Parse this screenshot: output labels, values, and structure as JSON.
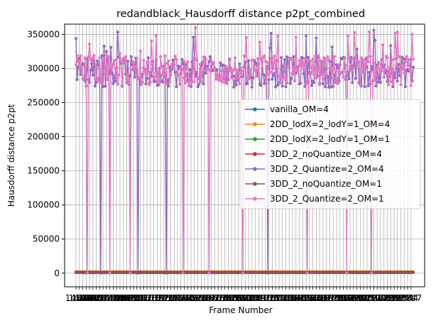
{
  "chart_data": {
    "type": "line",
    "title": "redandblack_Hausdorff distance p2pt_combined",
    "xlabel": "Frame Number",
    "ylabel": "Hausdorff distance p2pt",
    "ylim": [
      -20000,
      365000
    ],
    "yticks": [
      0,
      50000,
      100000,
      150000,
      200000,
      250000,
      300000,
      350000
    ],
    "ytick_labels": [
      "0",
      "50000",
      "100000",
      "150000",
      "200000",
      "250000",
      "300000",
      "350000"
    ],
    "xticks_visible": [
      "1450",
      "1749"
    ],
    "x_range": [
      1450,
      1749
    ],
    "grid": true,
    "legend_position": "right",
    "series": [
      {
        "name": "vanilla_OM=4",
        "color": "#1f77b4",
        "pattern": "near_zero",
        "base": 1500
      },
      {
        "name": "2DD_lodX=2_lodY=1_OM=4",
        "color": "#ff7f0e",
        "pattern": "near_zero",
        "base": 1700
      },
      {
        "name": "2DD_lodX=2_lodY=1_OM=1",
        "color": "#2ca02c",
        "pattern": "near_zero",
        "base": 1300
      },
      {
        "name": "3DD_2_noQuantize_OM=4",
        "color": "#d62728",
        "pattern": "near_zero",
        "base": 1200
      },
      {
        "name": "3DD_2_Quantize=2_OM=4",
        "color": "#9467bd",
        "pattern": "high_with_drops",
        "base": 295000
      },
      {
        "name": "3DD_2_noQuantize_OM=1",
        "color": "#8c564b",
        "pattern": "near_zero",
        "base": 900
      },
      {
        "name": "3DD_2_Quantize=2_OM=1",
        "color": "#e377c2",
        "pattern": "high_with_drops",
        "base": 297000
      }
    ],
    "approximate_range_of_high_series": [
      275000,
      345000
    ],
    "frames_count": 300
  }
}
